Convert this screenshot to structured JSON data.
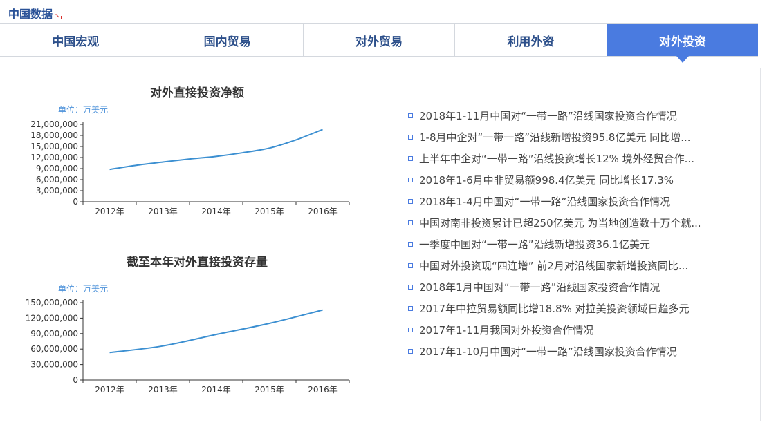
{
  "header": {
    "title": "中国数据"
  },
  "tabs": [
    {
      "label": "中国宏观",
      "active": false
    },
    {
      "label": "国内贸易",
      "active": false
    },
    {
      "label": "对外贸易",
      "active": false
    },
    {
      "label": "利用外资",
      "active": false
    },
    {
      "label": "对外投资",
      "active": true
    }
  ],
  "colors": {
    "accent": "#4a7be0",
    "line": "#3b8fd1",
    "title_text": "#2a5298"
  },
  "chart_data": [
    {
      "type": "line",
      "title": "对外直接投资净额",
      "unit": "单位：万美元",
      "categories": [
        "2012年",
        "2013年",
        "2014年",
        "2015年",
        "2016年"
      ],
      "x": [
        2012,
        2012.5,
        2013,
        2013.5,
        2014,
        2014.5,
        2015,
        2015.5,
        2016
      ],
      "values": [
        8780000,
        9900000,
        10780000,
        11600000,
        12310000,
        13300000,
        14570000,
        16800000,
        19610000
      ],
      "ylim": [
        0,
        21000000
      ],
      "yticks": [
        0,
        3000000,
        6000000,
        9000000,
        12000000,
        15000000,
        18000000,
        21000000
      ],
      "ytick_labels": [
        "0",
        "3,000,000",
        "6,000,000",
        "9,000,000",
        "12,000,000",
        "15,000,000",
        "18,000,000",
        "21,000,000"
      ],
      "grid": false
    },
    {
      "type": "line",
      "title": "截至本年对外直接投资存量",
      "unit": "单位：万美元",
      "categories": [
        "2012年",
        "2013年",
        "2014年",
        "2015年",
        "2016年"
      ],
      "x": [
        2012,
        2013,
        2014,
        2015,
        2016
      ],
      "values": [
        53190000,
        66050000,
        88260000,
        109790000,
        135740000
      ],
      "ylim": [
        0,
        150000000
      ],
      "yticks": [
        0,
        30000000,
        60000000,
        90000000,
        120000000,
        150000000
      ],
      "ytick_labels": [
        "0",
        "30,000,000",
        "60,000,000",
        "90,000,000",
        "120,000,000",
        "150,000,000"
      ],
      "grid": false
    }
  ],
  "news": [
    "2018年1-11月中国对“一带一路”沿线国家投资合作情况",
    "1-8月中企对“一带一路”沿线新增投资95.8亿美元 同比增...",
    "上半年中企对“一带一路”沿线投资增长12% 境外经贸合作...",
    "2018年1-6月中非贸易额998.4亿美元 同比增长17.3%",
    "2018年1-4月中国对“一带一路”沿线国家投资合作情况",
    "中国对南非投资累计已超250亿美元 为当地创造数十万个就...",
    "一季度中国对“一带一路”沿线新增投资36.1亿美元",
    "中国对外投资现“四连增” 前2月对沿线国家新增投资同比...",
    "2018年1月中国对“一带一路”沿线国家投资合作情况",
    "2017年中拉贸易额同比增18.8% 对拉美投资领域日趋多元",
    "2017年1-11月我国对外投资合作情况",
    "2017年1-10月中国对“一带一路”沿线国家投资合作情况"
  ]
}
